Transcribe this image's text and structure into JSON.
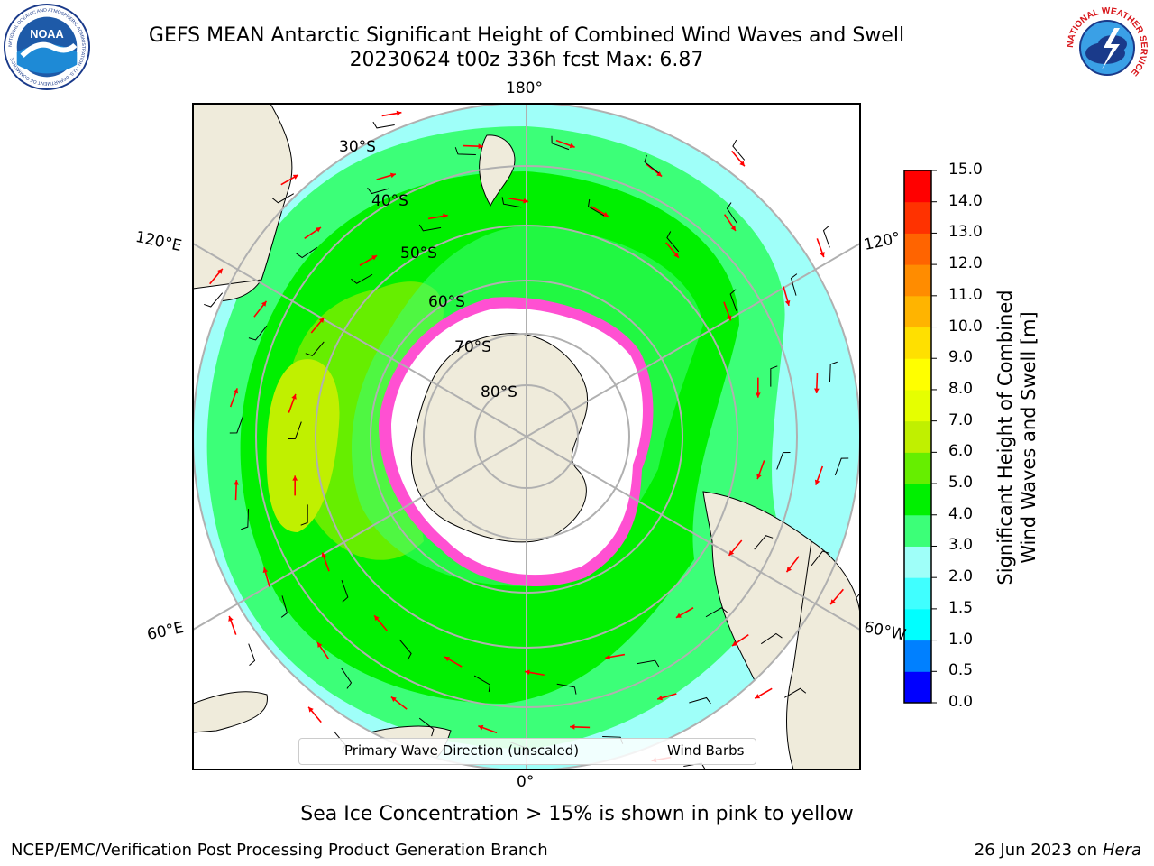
{
  "title_line1": "GEFS MEAN Antarctic Significant Height of Combined Wind Waves and Swell",
  "title_line2": "20230624 t00z 336h fcst   Max: 6.87",
  "lon_labels": {
    "top": "180°",
    "bottom": "0°",
    "left_upper": "120°E",
    "left_lower": "60°E",
    "right_upper": "120°",
    "right_lower": "60°W"
  },
  "lat_labels": [
    "30°S",
    "40°S",
    "50°S",
    "60°S",
    "70°S",
    "80°S"
  ],
  "legend": {
    "wave": "Primary Wave Direction (unscaled)",
    "barb": "Wind Barbs",
    "wave_color": "#ff0000",
    "barb_color": "#000000"
  },
  "colorbar": {
    "title_line1": "Significant Height of Combined",
    "title_line2": "Wind Waves and Swell [m]",
    "ticks": [
      "0.0",
      "0.5",
      "1.0",
      "1.5",
      "2.0",
      "3.0",
      "4.0",
      "5.0",
      "6.0",
      "7.0",
      "8.0",
      "9.0",
      "10.0",
      "11.0",
      "12.0",
      "13.0",
      "14.0",
      "15.0"
    ],
    "colors": [
      "#0000ff",
      "#0080ff",
      "#00ffff",
      "#40ffff",
      "#9ffff9",
      "#3cff78",
      "#00f000",
      "#66ee00",
      "#c0f000",
      "#e6ff00",
      "#ffff00",
      "#ffe000",
      "#ffb400",
      "#ff8c00",
      "#ff6400",
      "#ff3200",
      "#ff0000"
    ]
  },
  "caption": "Sea Ice Concentration > 15% is shown in pink to yellow",
  "footer_left": "NCEP/EMC/Verification Post Processing Product Generation Branch",
  "footer_right_date": "26 Jun 2023 on",
  "footer_right_machine": "Hera",
  "logos": {
    "noaa_text": "NOAA",
    "noaa_ring": "NATIONAL OCEANIC AND ATMOSPHERIC ADMINISTRATION · U.S. DEPARTMENT OF COMMERCE",
    "nws_ring": "NATIONAL WEATHER SERVICE"
  },
  "icons": {
    "noaa": "noaa-seal-icon",
    "nws": "nws-seal-icon"
  }
}
